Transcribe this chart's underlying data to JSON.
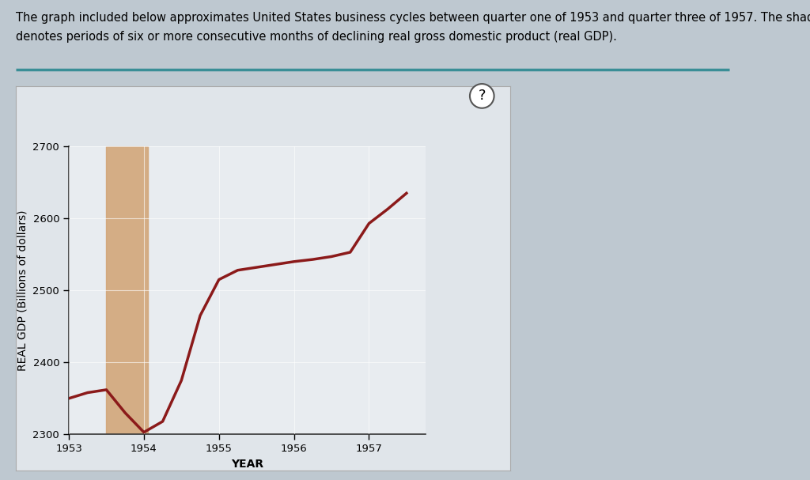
{
  "title_line1": "The graph included below approximates United States business cycles between quarter one of 1953 and quarter three of 1957. The shaded region",
  "title_line2": "denotes periods of six or more consecutive months of declining real gross domestic product (real GDP).",
  "xlabel": "YEAR",
  "ylabel": "REAL GDP (Billions of dollars)",
  "xlim": [
    1953.0,
    1957.75
  ],
  "ylim": [
    2300,
    2700
  ],
  "yticks": [
    2300,
    2400,
    2500,
    2600,
    2700
  ],
  "xticks": [
    1953,
    1954,
    1955,
    1956,
    1957
  ],
  "line_color": "#8B1A1A",
  "line_width": 2.5,
  "shade_xmin": 1953.5,
  "shade_xmax": 1954.05,
  "shade_color": "#D2A679",
  "shade_alpha": 0.9,
  "x_data": [
    1953.0,
    1953.25,
    1953.5,
    1953.75,
    1954.0,
    1954.25,
    1954.5,
    1954.75,
    1955.0,
    1955.25,
    1955.5,
    1955.75,
    1956.0,
    1956.25,
    1956.5,
    1956.75,
    1957.0,
    1957.25,
    1957.5
  ],
  "y_data": [
    2350,
    2358,
    2362,
    2330,
    2303,
    2318,
    2375,
    2465,
    2515,
    2528,
    2532,
    2536,
    2540,
    2543,
    2547,
    2553,
    2593,
    2613,
    2635
  ],
  "chart_bg_color": "#E8ECF0",
  "outer_box_color": "#E0E5EA",
  "teal_line_color": "#3A8E96",
  "figure_bg": "#BEC8D0",
  "title_fontsize": 10.5,
  "axis_label_fontsize": 10,
  "tick_fontsize": 9.5,
  "grid_color": "#FFFFFF",
  "grid_alpha": 0.6,
  "grid_lw": 0.8
}
